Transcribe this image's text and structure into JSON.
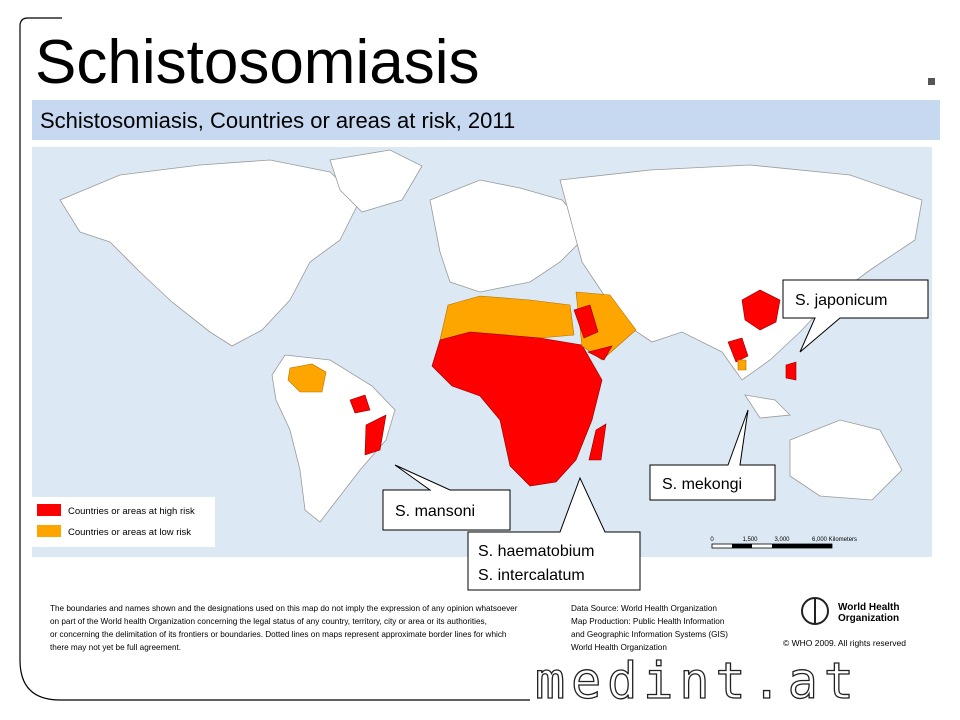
{
  "title": "Schistosomiasis",
  "subtitle": "Schistosomiasis, Countries or areas at risk, 2011",
  "legend": [
    {
      "label": "Countries or areas at high risk",
      "color": "#ff0000"
    },
    {
      "label": "Countries or areas at low risk",
      "color": "#ffa500"
    }
  ],
  "callouts": [
    "S. japonicum",
    "S. mekongi",
    "S. mansoni",
    "S. haematobium",
    "S. intercalatum"
  ],
  "scale": [
    "0",
    "1,500",
    "3,000",
    "6,000 Kilometers"
  ],
  "disclaimer": [
    "The boundaries and names shown and the designations used on this map do not imply the expression of any opinion whatsoever",
    "on part of the World health Organization concerning the legal status of any country, territory, city or area or its authorities,",
    "or concerning the delimitation of its frontiers or boundaries. Dotted lines on maps represent approximate border lines for which",
    "there may not yet be full agreement."
  ],
  "source": [
    "Data Source: World Health Organization",
    "Map Production: Public Health Information",
    "and Geographic Information Systems (GIS)",
    "World Health Organization"
  ],
  "organization": "World Health Organization",
  "copyright": "© WHO 2009. All rights reserved",
  "watermark": "medint.at"
}
